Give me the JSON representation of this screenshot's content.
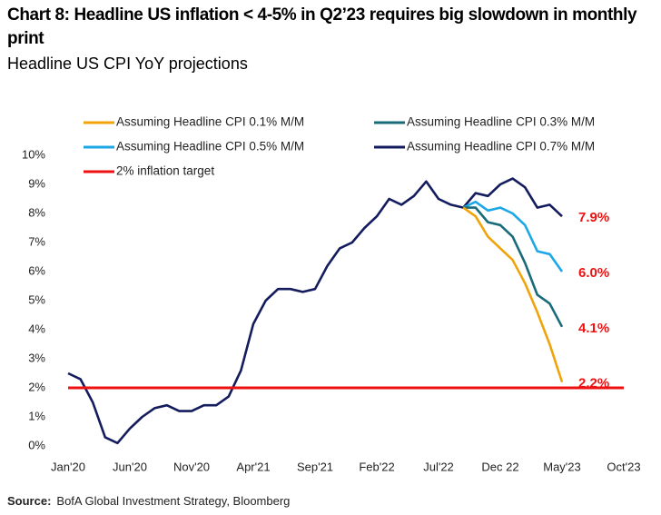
{
  "chart_data": {
    "type": "line",
    "title": "Chart 8: Headline US inflation < 4-5% in Q2’23 requires big slowdown in monthly print",
    "subtitle": "Headline US CPI YoY projections",
    "source": {
      "label": "Source:",
      "text": "BofA Global Investment Strategy, Bloomberg"
    },
    "categories": [
      "Jan'20",
      null,
      null,
      null,
      null,
      "Jun'20",
      null,
      null,
      null,
      null,
      "Nov'20",
      null,
      null,
      null,
      null,
      "Apr'21",
      null,
      null,
      null,
      null,
      "Sep'21",
      null,
      null,
      null,
      null,
      "Feb'22",
      null,
      null,
      null,
      null,
      "Jul'22",
      null,
      null,
      null,
      null,
      "Dec 22",
      null,
      null,
      null,
      null,
      "May'23",
      null,
      null,
      null,
      null,
      "Oct'23"
    ],
    "ylim": [
      0,
      10
    ],
    "yticks": [
      {
        "value": 0,
        "label": "0%"
      },
      {
        "value": 1,
        "label": "1%"
      },
      {
        "value": 2,
        "label": "2%"
      },
      {
        "value": 3,
        "label": "3%"
      },
      {
        "value": 4,
        "label": "4%"
      },
      {
        "value": 5,
        "label": "5%"
      },
      {
        "value": 6,
        "label": "6%"
      },
      {
        "value": 7,
        "label": "7%"
      },
      {
        "value": 8,
        "label": "8%"
      },
      {
        "value": 9,
        "label": "9%"
      },
      {
        "value": 10,
        "label": "10%"
      }
    ],
    "series": [
      {
        "name": "Assuming Headline CPI 0.1% M/M",
        "color": "#f0a30a",
        "end_label": "2.2%",
        "values": [
          null,
          null,
          null,
          null,
          null,
          null,
          null,
          null,
          null,
          null,
          null,
          null,
          null,
          null,
          null,
          null,
          null,
          null,
          null,
          null,
          null,
          null,
          null,
          null,
          null,
          null,
          null,
          null,
          null,
          null,
          null,
          null,
          8.2,
          7.9,
          7.2,
          6.8,
          6.4,
          5.6,
          4.6,
          3.5,
          2.2,
          null,
          null,
          null,
          null,
          null
        ]
      },
      {
        "name": "Assuming Headline CPI 0.3% M/M",
        "color": "#1a6b7a",
        "end_label": "4.1%",
        "values": [
          null,
          null,
          null,
          null,
          null,
          null,
          null,
          null,
          null,
          null,
          null,
          null,
          null,
          null,
          null,
          null,
          null,
          null,
          null,
          null,
          null,
          null,
          null,
          null,
          null,
          null,
          null,
          null,
          null,
          null,
          null,
          null,
          8.2,
          8.2,
          7.7,
          7.6,
          7.2,
          6.3,
          5.2,
          4.9,
          4.1,
          null,
          null,
          null,
          null,
          null
        ]
      },
      {
        "name": "Assuming Headline CPI 0.5% M/M",
        "color": "#1ea7e6",
        "end_label": "6.0%",
        "values": [
          null,
          null,
          null,
          null,
          null,
          null,
          null,
          null,
          null,
          null,
          null,
          null,
          null,
          null,
          null,
          null,
          null,
          null,
          null,
          null,
          null,
          null,
          null,
          null,
          null,
          null,
          null,
          null,
          null,
          null,
          null,
          null,
          8.2,
          8.4,
          8.1,
          8.2,
          8.0,
          7.6,
          6.7,
          6.6,
          6.0,
          null,
          null,
          null,
          null,
          null
        ]
      },
      {
        "name": "Assuming Headline CPI 0.7% M/M",
        "color": "#141c5e",
        "end_label": "7.9%",
        "values": [
          null,
          null,
          null,
          null,
          null,
          null,
          null,
          null,
          null,
          null,
          null,
          null,
          null,
          null,
          null,
          null,
          null,
          null,
          null,
          null,
          null,
          null,
          null,
          null,
          null,
          null,
          null,
          null,
          null,
          null,
          null,
          null,
          8.2,
          8.7,
          8.6,
          9.0,
          9.2,
          8.9,
          8.2,
          8.3,
          7.9,
          null,
          null,
          null,
          null,
          null
        ]
      },
      {
        "name": "2% inflation target",
        "color": "#ee1111",
        "values": [
          2,
          2,
          2,
          2,
          2,
          2,
          2,
          2,
          2,
          2,
          2,
          2,
          2,
          2,
          2,
          2,
          2,
          2,
          2,
          2,
          2,
          2,
          2,
          2,
          2,
          2,
          2,
          2,
          2,
          2,
          2,
          2,
          2,
          2,
          2,
          2,
          2,
          2,
          2,
          2,
          2,
          2,
          2,
          2,
          2,
          2
        ]
      },
      {
        "color": "#141c5e",
        "values": [
          2.5,
          2.3,
          1.5,
          0.3,
          0.1,
          0.6,
          1.0,
          1.3,
          1.4,
          1.2,
          1.2,
          1.4,
          1.4,
          1.7,
          2.6,
          4.2,
          5.0,
          5.4,
          5.4,
          5.3,
          5.4,
          6.2,
          6.8,
          7.0,
          7.5,
          7.9,
          8.5,
          8.3,
          8.6,
          9.1,
          8.5,
          8.3,
          8.2,
          null,
          null,
          null,
          null,
          null,
          null,
          null,
          null,
          null,
          null,
          null,
          null,
          null
        ]
      }
    ]
  }
}
